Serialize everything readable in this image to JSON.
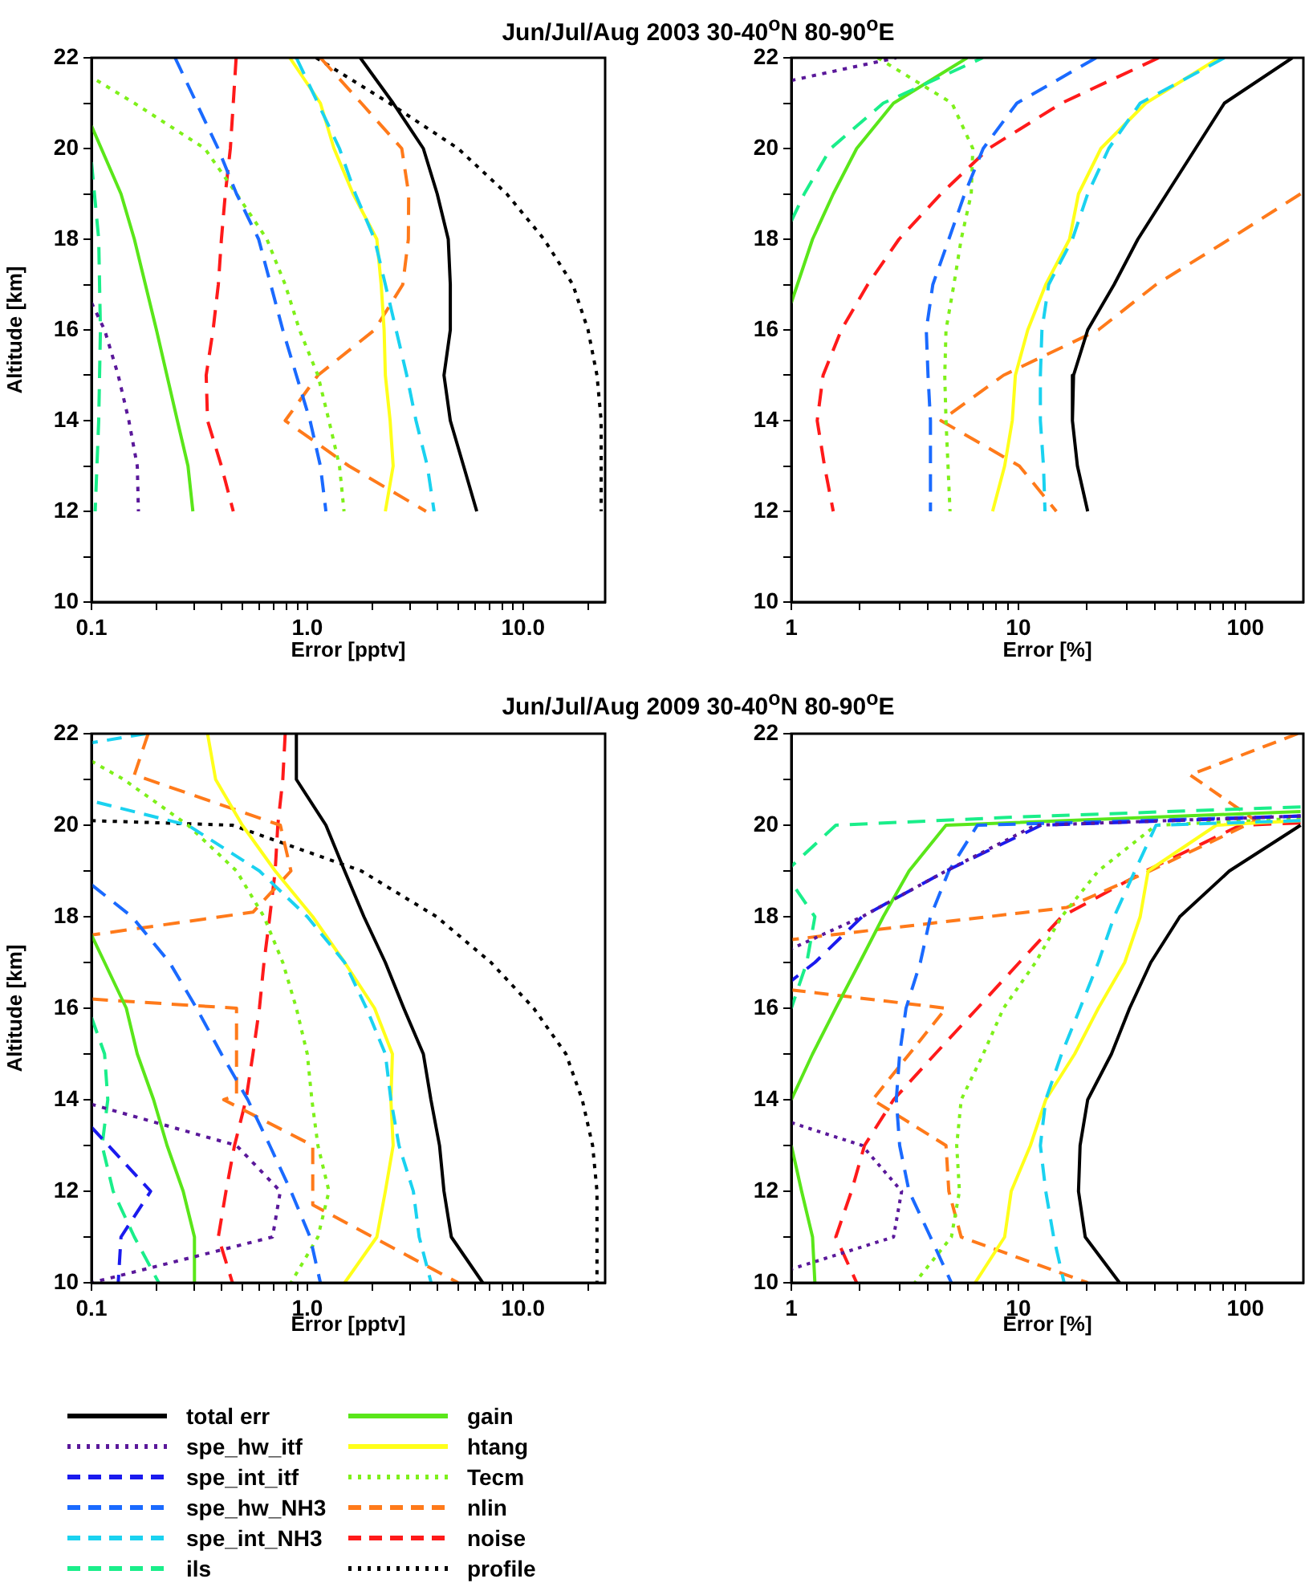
{
  "chart_data": [
    {
      "type": "line",
      "title": "Jun/Jul/Aug 2003 30-40$^{o}$N 80-90$^{o}$E",
      "xlabel": "Error [pptv]",
      "ylabel": "Altitude [km]",
      "log": "x",
      "marker": "none",
      "xlim": [
        0.1,
        24
      ],
      "ylim": [
        10,
        22
      ],
      "xticks": [
        {
          "value": 0.1,
          "label": "0.1"
        },
        {
          "value": 0.2,
          "label": null
        },
        {
          "value": 0.3,
          "label": null
        },
        {
          "value": 0.4,
          "label": null
        },
        {
          "value": 0.5,
          "label": null
        },
        {
          "value": 0.6,
          "label": null
        },
        {
          "value": 0.7,
          "label": null
        },
        {
          "value": 0.8,
          "label": null
        },
        {
          "value": 0.9,
          "label": null
        },
        {
          "value": 1,
          "label": "1.0"
        },
        {
          "value": 2,
          "label": null
        },
        {
          "value": 3,
          "label": null
        },
        {
          "value": 4,
          "label": null
        },
        {
          "value": 5,
          "label": null
        },
        {
          "value": 6,
          "label": null
        },
        {
          "value": 7,
          "label": null
        },
        {
          "value": 8,
          "label": null
        },
        {
          "value": 9,
          "label": null
        },
        {
          "value": 10,
          "label": "10.0"
        },
        {
          "value": 20,
          "label": null
        }
      ],
      "yticks": [
        10,
        {
          "value": 11,
          "label": null
        },
        12,
        {
          "value": 13,
          "label": null
        },
        14,
        {
          "value": 15,
          "label": null
        },
        16,
        {
          "value": 17,
          "label": null
        },
        18,
        {
          "value": 19,
          "label": null
        },
        20,
        {
          "value": 21,
          "label": null
        },
        22
      ],
      "series": [
        {
          "color": "#000000",
          "line_style": "solid",
          "x": [
            1.76,
            2.5,
            3.45,
            4.0,
            4.5,
            4.6,
            4.6,
            4.3,
            4.6,
            5.3,
            6.1
          ],
          "values": [
            22,
            21,
            20,
            19,
            18,
            17,
            16,
            15,
            14,
            13,
            12
          ]
        },
        {
          "color": "#5a189a",
          "line_style": "dotted",
          "x": [
            0.1,
            0.115,
            0.133,
            0.149,
            0.163,
            0.165
          ],
          "values": [
            16.6,
            16,
            15,
            14,
            13,
            12
          ]
        },
        {
          "color": "#1a6aff",
          "line_style": "dashed",
          "x": [
            0.244,
            0.386,
            0.47,
            0.595,
            0.77,
            0.89,
            1.03,
            1.15,
            1.22
          ],
          "values": [
            22,
            20,
            19,
            18,
            16,
            15,
            14,
            13,
            12
          ]
        },
        {
          "color": "#1ad2f0",
          "line_style": "dashed",
          "x": [
            0.89,
            1.12,
            1.41,
            1.67,
            2.05,
            2.3,
            2.58,
            2.89,
            3.19,
            3.6,
            3.87
          ],
          "values": [
            22,
            21,
            20,
            19,
            18,
            17,
            16,
            15,
            14,
            13,
            12
          ]
        },
        {
          "color": "#1aee8a",
          "line_style": "dashed",
          "x": [
            0.1,
            0.108,
            0.11,
            0.108,
            0.104
          ],
          "values": [
            19.7,
            18,
            16,
            14,
            12
          ]
        },
        {
          "color": "#5ae61a",
          "line_style": "solid",
          "x": [
            0.1,
            0.137,
            0.158,
            0.2,
            0.25,
            0.28,
            0.295
          ],
          "values": [
            20.5,
            19,
            18,
            16,
            14,
            13,
            12
          ]
        },
        {
          "color": "#ffff1a",
          "line_style": "solid",
          "x": [
            0.83,
            1.15,
            1.33,
            1.63,
            2.1,
            2.2,
            2.27,
            2.3,
            2.42,
            2.5,
            2.3
          ],
          "values": [
            22,
            21,
            20,
            19,
            18,
            17,
            16,
            15,
            14,
            13,
            12
          ]
        },
        {
          "color": "#7ef01a",
          "line_style": "dotted",
          "x": [
            0.106,
            0.158,
            0.335,
            0.47,
            0.65,
            0.79,
            0.92,
            1.12,
            1.26,
            1.41,
            1.48
          ],
          "values": [
            21.5,
            21,
            20,
            19,
            18,
            17,
            16,
            15,
            14,
            13,
            12
          ]
        },
        {
          "color": "#ff7a1a",
          "line_style": "dashed",
          "x": [
            1.15,
            1.78,
            2.74,
            2.95,
            2.94,
            2.77,
            2.05,
            1.12,
            0.79,
            1.56,
            3.55
          ],
          "values": [
            22,
            21,
            20,
            19,
            18,
            17,
            16,
            15,
            14,
            13,
            12
          ]
        },
        {
          "color": "#ff1a1a",
          "line_style": "dashed",
          "x": [
            0.468,
            0.454,
            0.44,
            0.417,
            0.4,
            0.387,
            0.366,
            0.34,
            0.345,
            0.4,
            0.454
          ],
          "values": [
            22,
            21,
            20,
            19,
            18,
            17,
            16,
            15,
            14,
            13,
            12
          ]
        },
        {
          "color": "#000000",
          "line_style": "dotted",
          "x": [
            1.1,
            2.4,
            5,
            8.4,
            12.5,
            17,
            20,
            22,
            23,
            23,
            23
          ],
          "values": [
            22,
            21,
            20,
            19,
            18,
            17,
            16,
            15,
            14,
            13,
            12
          ]
        }
      ]
    },
    {
      "type": "line",
      "xlabel": "Error [%]",
      "log": "x",
      "marker": "none",
      "xlim": [
        1,
        180
      ],
      "ylim": [
        10,
        22
      ],
      "xticks": [
        {
          "value": 1,
          "label": "1"
        },
        {
          "value": 2,
          "label": null
        },
        {
          "value": 3,
          "label": null
        },
        {
          "value": 4,
          "label": null
        },
        {
          "value": 5,
          "label": null
        },
        {
          "value": 6,
          "label": null
        },
        {
          "value": 7,
          "label": null
        },
        {
          "value": 8,
          "label": null
        },
        {
          "value": 9,
          "label": null
        },
        {
          "value": 10,
          "label": "10"
        },
        {
          "value": 20,
          "label": null
        },
        {
          "value": 30,
          "label": null
        },
        {
          "value": 40,
          "label": null
        },
        {
          "value": 50,
          "label": null
        },
        {
          "value": 60,
          "label": null
        },
        {
          "value": 70,
          "label": null
        },
        {
          "value": 80,
          "label": null
        },
        {
          "value": 90,
          "label": null
        },
        {
          "value": 100,
          "label": "100"
        }
      ],
      "yticks": [
        10,
        {
          "value": 11,
          "label": null
        },
        12,
        {
          "value": 13,
          "label": null
        },
        14,
        {
          "value": 15,
          "label": null
        },
        16,
        {
          "value": 17,
          "label": null
        },
        18,
        {
          "value": 19,
          "label": null
        },
        20,
        {
          "value": 21,
          "label": null
        },
        22
      ],
      "series": [
        {
          "color": "#000000",
          "line_style": "solid",
          "x": [
            161,
            80.8,
            60.3,
            45,
            33.6,
            26.4,
            20.2,
            17.5,
            17.3,
            18.2,
            20.2
          ],
          "values": [
            22,
            21,
            20,
            19,
            18,
            17,
            16,
            15,
            14,
            13,
            12
          ]
        },
        {
          "color": "#5a189a",
          "line_style": "dotted",
          "x": [
            1,
            1.66,
            2.9
          ],
          "values": [
            21.5,
            21.74,
            22
          ]
        },
        {
          "color": "#1a6aff",
          "line_style": "dashed",
          "x": [
            22,
            9.85,
            7,
            5.8,
            4.94,
            4.2,
            3.93,
            4.0,
            4.1,
            4.1,
            4.1
          ],
          "values": [
            22,
            21,
            20,
            19,
            18,
            17,
            16,
            15,
            14,
            13,
            12
          ]
        },
        {
          "color": "#1ad2f0",
          "line_style": "dashed",
          "x": [
            80.8,
            34.4,
            25,
            20.2,
            17.3,
            13.6,
            12.7,
            12.5,
            12.5,
            12.9,
            13.1
          ],
          "values": [
            22,
            21,
            20,
            19,
            18,
            17,
            16,
            15,
            14,
            13,
            12
          ]
        },
        {
          "color": "#1aee8a",
          "line_style": "dashed",
          "x": [
            1,
            1.14,
            1.49,
            2.54,
            6.97
          ],
          "values": [
            18.4,
            19,
            20,
            21,
            22
          ]
        },
        {
          "color": "#5ae61a",
          "line_style": "solid",
          "x": [
            1,
            1.24,
            1.53,
            1.94,
            2.82,
            5.95
          ],
          "values": [
            16.6,
            18,
            19,
            20,
            21,
            22
          ]
        },
        {
          "color": "#ffff1a",
          "line_style": "solid",
          "x": [
            76.6,
            36.4,
            23.1,
            18.4,
            16.8,
            13.2,
            11,
            9.7,
            9.4,
            8.7,
            7.7
          ],
          "values": [
            22,
            21,
            20,
            19,
            18,
            17,
            16,
            15,
            14,
            13,
            12
          ]
        },
        {
          "color": "#7ef01a",
          "line_style": "dotted",
          "x": [
            2.4,
            5.1,
            6.3,
            6.2,
            5.6,
            5.2,
            4.8,
            4.74,
            4.8,
            4.9,
            5.0
          ],
          "values": [
            22,
            21,
            20,
            19,
            18,
            17,
            16,
            15,
            14,
            13,
            12
          ]
        },
        {
          "color": "#ff7a1a",
          "line_style": "dashed",
          "x": [
            175,
            85,
            40.4,
            22.5,
            8.6,
            4.56,
            10.1,
            14.7
          ],
          "values": [
            19,
            18,
            17,
            16,
            15,
            14,
            13,
            12
          ]
        },
        {
          "color": "#ff1a1a",
          "line_style": "dashed",
          "x": [
            41.5,
            15.5,
            7.4,
            4.56,
            2.98,
            2.17,
            1.66,
            1.38,
            1.3,
            1.4,
            1.53
          ],
          "values": [
            22,
            21,
            20,
            19,
            18,
            17,
            16,
            15,
            14,
            13,
            12
          ]
        }
      ]
    },
    {
      "type": "line",
      "title": "Jun/Jul/Aug 2009 30-40$^{o}$N 80-90$^{o}$E",
      "xlabel": "Error [pptv]",
      "ylabel": "Altitude [km]",
      "log": "x",
      "marker": "none",
      "legend": "bottom",
      "xlim": [
        0.1,
        24
      ],
      "ylim": [
        10,
        22
      ],
      "xticks": [
        {
          "value": 0.1,
          "label": "0.1"
        },
        {
          "value": 0.2,
          "label": null
        },
        {
          "value": 0.3,
          "label": null
        },
        {
          "value": 0.4,
          "label": null
        },
        {
          "value": 0.5,
          "label": null
        },
        {
          "value": 0.6,
          "label": null
        },
        {
          "value": 0.7,
          "label": null
        },
        {
          "value": 0.8,
          "label": null
        },
        {
          "value": 0.9,
          "label": null
        },
        {
          "value": 1,
          "label": "1.0"
        },
        {
          "value": 2,
          "label": null
        },
        {
          "value": 3,
          "label": null
        },
        {
          "value": 4,
          "label": null
        },
        {
          "value": 5,
          "label": null
        },
        {
          "value": 6,
          "label": null
        },
        {
          "value": 7,
          "label": null
        },
        {
          "value": 8,
          "label": null
        },
        {
          "value": 9,
          "label": null
        },
        {
          "value": 10,
          "label": "10.0"
        },
        {
          "value": 20,
          "label": null
        }
      ],
      "yticks": [
        10,
        {
          "value": 11,
          "label": null
        },
        12,
        {
          "value": 13,
          "label": null
        },
        14,
        {
          "value": 15,
          "label": null
        },
        16,
        {
          "value": 17,
          "label": null
        },
        18,
        {
          "value": 19,
          "label": null
        },
        20,
        {
          "value": 21,
          "label": null
        },
        22
      ],
      "series": [
        {
          "name": "total err",
          "color": "#000000",
          "line_style": "solid",
          "x": [
            0.89,
            0.89,
            1.22,
            1.49,
            1.83,
            2.3,
            2.8,
            3.45,
            3.74,
            4.1,
            4.3,
            4.65,
            6.5
          ],
          "values": [
            22,
            21,
            20,
            19,
            18,
            17,
            16,
            15,
            14,
            13,
            12,
            11,
            10
          ]
        },
        {
          "name": "spe_hw_itf",
          "color": "#5a189a",
          "line_style": "dotted",
          "x": [
            0.1,
            0.47,
            0.75,
            0.69,
            0.1
          ],
          "values": [
            13.9,
            13,
            12,
            11,
            10
          ]
        },
        {
          "name": "spe_int_itf",
          "color": "#1a1aee",
          "line_style": "dashed",
          "x": [
            0.1,
            0.188,
            0.137,
            0.133
          ],
          "values": [
            13.4,
            12,
            11,
            10
          ]
        },
        {
          "name": "spe_hw_NH3",
          "color": "#1a6aff",
          "line_style": "dashed",
          "x": [
            0.1,
            0.154,
            0.23,
            0.307,
            0.4,
            0.53,
            0.67,
            0.84,
            1.03,
            1.15
          ],
          "values": [
            18.7,
            18,
            17,
            16,
            15,
            14,
            13,
            12,
            11,
            10
          ]
        },
        {
          "name": "spe_int_NH3",
          "color": "#1ad2f0",
          "line_style": "dashed",
          "x": [
            0.178,
            0.1,
            null,
            0.106,
            0.28,
            0.6,
            1.0,
            1.49,
            1.88,
            2.3,
            2.44,
            2.66,
            3.1,
            3.3,
            3.75
          ],
          "values": [
            22,
            21.8,
            null,
            20.5,
            20,
            19,
            18,
            17,
            16,
            15,
            14,
            13,
            12,
            11,
            10
          ]
        },
        {
          "name": "ils",
          "color": "#1aee8a",
          "line_style": "dashed",
          "x": [
            0.1,
            0.115,
            0.119,
            0.112,
            0.126,
            0.158,
            0.205
          ],
          "values": [
            15.8,
            15,
            14,
            13,
            12,
            11,
            10
          ]
        },
        {
          "name": "gain",
          "color": "#5ae61a",
          "line_style": "solid",
          "x": [
            0.1,
            0.115,
            0.145,
            0.163,
            0.194,
            0.224,
            0.266,
            0.3,
            0.3
          ],
          "values": [
            17.6,
            17,
            16,
            15,
            14,
            13,
            12,
            11,
            10
          ]
        },
        {
          "name": "htang",
          "color": "#ffff1a",
          "line_style": "solid",
          "x": [
            0.345,
            0.376,
            0.5,
            0.71,
            1.06,
            1.49,
            2.05,
            2.48,
            2.44,
            2.5,
            2.3,
            2.1,
            1.49
          ],
          "values": [
            22,
            21,
            20,
            19,
            18,
            17,
            16,
            15,
            14,
            13,
            12,
            11,
            10
          ]
        },
        {
          "name": "Tecm",
          "color": "#7ef01a",
          "line_style": "dotted",
          "x": [
            0.1,
            0.141,
            0.28,
            0.47,
            0.63,
            0.77,
            0.89,
            1.0,
            1.05,
            1.12,
            1.26,
            1.12,
            0.84
          ],
          "values": [
            21.4,
            21,
            20,
            19,
            18,
            17,
            16,
            15,
            14,
            13,
            12,
            11,
            10
          ]
        },
        {
          "name": "nlin",
          "color": "#ff7a1a",
          "line_style": "dashed",
          "x": [
            0.183,
            0.158,
            0.75,
            0.84,
            0.56,
            0.1,
            null,
            0.1,
            0.47,
            0.47,
            0.41,
            1.06,
            1.06,
            5.0
          ],
          "values": [
            22,
            21.1,
            20,
            19,
            18.1,
            17.6,
            null,
            16.2,
            16,
            14.1,
            14,
            13,
            11.7,
            10
          ]
        },
        {
          "name": "noise",
          "color": "#ff1a1a",
          "line_style": "dashed",
          "x": [
            0.79,
            0.77,
            0.73,
            0.71,
            0.67,
            0.63,
            0.6,
            0.56,
            0.52,
            0.46,
            0.42,
            0.387,
            0.45
          ],
          "values": [
            22,
            21,
            20,
            19,
            18,
            17,
            16,
            15,
            14,
            13,
            12,
            11,
            10
          ]
        },
        {
          "name": "profile",
          "color": "#000000",
          "line_style": "dotted",
          "x": [
            0.1,
            0.45,
            1.78,
            3.97,
            7.1,
            11.2,
            15.8,
            18.8,
            21,
            22,
            22,
            22
          ],
          "values": [
            20.1,
            20,
            19,
            18,
            17,
            16,
            15,
            14,
            13,
            12,
            11,
            10
          ]
        }
      ]
    },
    {
      "type": "line",
      "xlabel": "Error [%]",
      "log": "x",
      "marker": "none",
      "xlim": [
        1,
        180
      ],
      "ylim": [
        10,
        22
      ],
      "xticks": [
        {
          "value": 1,
          "label": "1"
        },
        {
          "value": 2,
          "label": null
        },
        {
          "value": 3,
          "label": null
        },
        {
          "value": 4,
          "label": null
        },
        {
          "value": 5,
          "label": null
        },
        {
          "value": 6,
          "label": null
        },
        {
          "value": 7,
          "label": null
        },
        {
          "value": 8,
          "label": null
        },
        {
          "value": 9,
          "label": null
        },
        {
          "value": 10,
          "label": "10"
        },
        {
          "value": 20,
          "label": null
        },
        {
          "value": 30,
          "label": null
        },
        {
          "value": 40,
          "label": null
        },
        {
          "value": 50,
          "label": null
        },
        {
          "value": 60,
          "label": null
        },
        {
          "value": 70,
          "label": null
        },
        {
          "value": 80,
          "label": null
        },
        {
          "value": 90,
          "label": null
        },
        {
          "value": 100,
          "label": "100"
        }
      ],
      "yticks": [
        10,
        {
          "value": 11,
          "label": null
        },
        12,
        {
          "value": 13,
          "label": null
        },
        14,
        {
          "value": 15,
          "label": null
        },
        16,
        {
          "value": 17,
          "label": null
        },
        18,
        {
          "value": 19,
          "label": null
        },
        20,
        {
          "value": 21,
          "label": null
        },
        22
      ],
      "series": [
        {
          "color": "#000000",
          "line_style": "solid",
          "x": [
            175,
            85,
            51.4,
            38.3,
            30.9,
            25.7,
            20.2,
            18.7,
            18.4,
            19.7,
            27.9
          ],
          "values": [
            20,
            19,
            18,
            17,
            16,
            15,
            14,
            13,
            12,
            11,
            10
          ]
        },
        {
          "color": "#5a189a",
          "line_style": "dotted",
          "x": [
            175,
            11.9,
            4.8,
            2.05,
            1,
            null,
            1,
            2.05,
            3.06,
            2.82,
            1
          ],
          "values": [
            20.2,
            20,
            19,
            18,
            17.3,
            null,
            13.5,
            13,
            12,
            11,
            10.3
          ]
        },
        {
          "color": "#1a1aee",
          "line_style": "dashed",
          "x": [
            175,
            12.6,
            4.8,
            2.05,
            1.27,
            1
          ],
          "values": [
            20.2,
            20,
            19,
            18,
            17,
            16.6
          ]
        },
        {
          "color": "#1a6aff",
          "line_style": "dashed",
          "x": [
            175,
            6.6,
            4.94,
            4.1,
            3.7,
            3.2,
            3.0,
            2.9,
            3.0,
            3.3,
            4.1,
            5.07
          ],
          "values": [
            20.2,
            20,
            19,
            18,
            17,
            16,
            15,
            14,
            13,
            12,
            11,
            10
          ]
        },
        {
          "color": "#1ad2f0",
          "line_style": "dashed",
          "x": [
            175,
            40.4,
            32.6,
            26.4,
            22.5,
            18.7,
            15.5,
            13.2,
            12.5,
            13.2,
            14.3,
            15.9
          ],
          "values": [
            20.1,
            20,
            19,
            18,
            17,
            16,
            15,
            14,
            13,
            12,
            11,
            10
          ]
        },
        {
          "color": "#1aee8a",
          "line_style": "dashed",
          "x": [
            175,
            10,
            1.57,
            1,
            null,
            1.05,
            1.27,
            1.17,
            1
          ],
          "values": [
            20.4,
            20.18,
            20,
            19.1,
            null,
            18.6,
            18,
            17,
            16
          ]
        },
        {
          "color": "#5ae61a",
          "line_style": "solid",
          "x": [
            175,
            4.8,
            3.3,
            2.54,
            2.0,
            1.57,
            1.24,
            1,
            null,
            1,
            1.11,
            1.24,
            1.27
          ],
          "values": [
            20.3,
            20,
            19,
            18,
            17,
            16,
            15,
            14,
            null,
            13,
            12,
            11,
            10
          ]
        },
        {
          "color": "#ffff1a",
          "line_style": "solid",
          "x": [
            175,
            74.5,
            37.3,
            34.4,
            29.4,
            22.5,
            17.7,
            13.2,
            11.3,
            9.3,
            8.7,
            6.45
          ],
          "values": [
            20.1,
            20,
            19,
            18,
            17,
            16,
            15,
            14,
            13,
            12,
            11,
            10
          ]
        },
        {
          "color": "#7ef01a",
          "line_style": "dotted",
          "x": [
            175,
            40.4,
            22.5,
            15.5,
            11.9,
            8.6,
            7.0,
            5.6,
            5.35,
            5.5,
            5.07,
            3.5
          ],
          "values": [
            20.15,
            20,
            19,
            18,
            17,
            16,
            15,
            14,
            13,
            12,
            11,
            10
          ]
        },
        {
          "color": "#ff7a1a",
          "line_style": "dashed",
          "x": [
            170,
            57,
            111,
            38,
            16.3,
            1,
            null,
            1,
            4.8,
            2.28,
            4.8,
            4.94,
            5.6,
            20.2
          ],
          "values": [
            22,
            21.1,
            20.1,
            19,
            18.2,
            17.5,
            null,
            16.4,
            16,
            14,
            13,
            12,
            11,
            10
          ]
        },
        {
          "color": "#ff1a1a",
          "line_style": "dashed",
          "x": [
            175,
            95,
            36.4,
            15.5,
            10.1,
            6.6,
            4.3,
            2.82,
            2.1,
            1.84,
            1.57,
            1.94
          ],
          "values": [
            20.05,
            20,
            19,
            18,
            17,
            16,
            15,
            14,
            13,
            12,
            11,
            10
          ]
        }
      ]
    }
  ]
}
